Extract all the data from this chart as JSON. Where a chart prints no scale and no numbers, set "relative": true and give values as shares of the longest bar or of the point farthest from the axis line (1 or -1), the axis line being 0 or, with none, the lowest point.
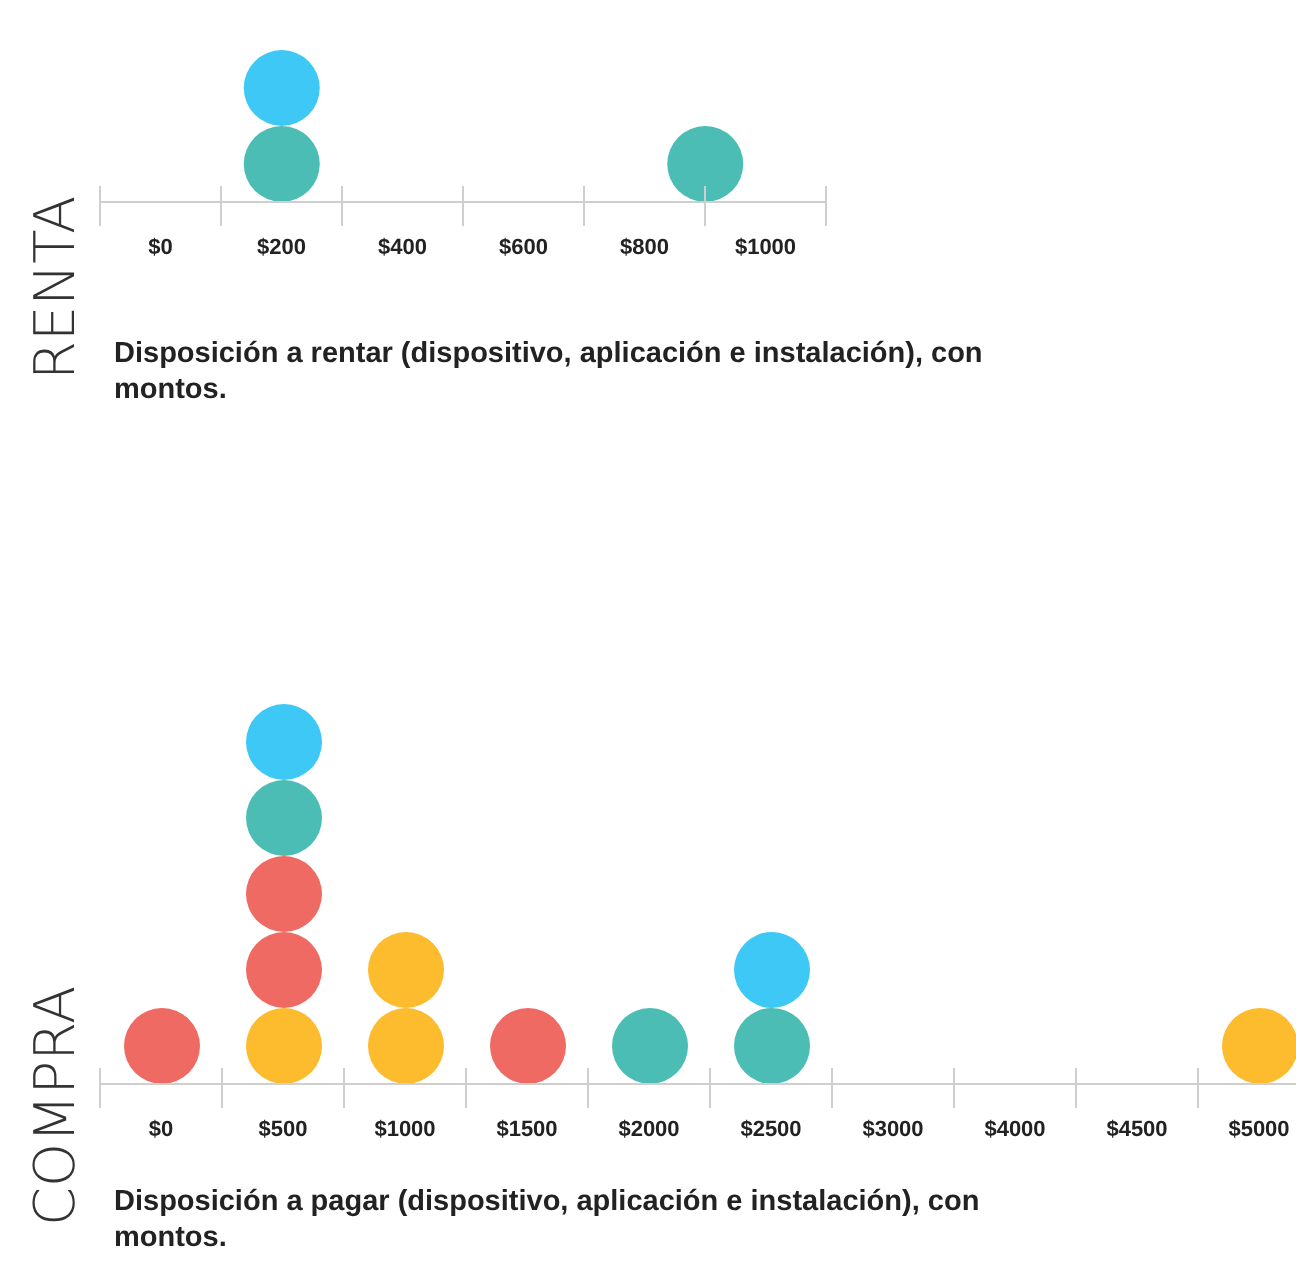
{
  "chart_data": [
    {
      "type": "bar",
      "stacked": true,
      "relative": true,
      "ylabel": "RENTA",
      "title": "Disposición a rentar (dispositivo, aplicación e instalación), con montos.",
      "x": [
        200,
        900
      ],
      "xlim": [
        -100,
        1100
      ],
      "xticks": [
        {
          "value": 0,
          "label": "$0"
        },
        {
          "value": 200,
          "label": "$200"
        },
        {
          "value": 400,
          "label": "$400"
        },
        {
          "value": 600,
          "label": "$600"
        },
        {
          "value": 800,
          "label": "$800"
        },
        {
          "value": 1000,
          "label": "$1000"
        }
      ],
      "series": [
        {
          "color": "#4bbdb5",
          "values": [
            0.5,
            0.5
          ]
        },
        {
          "color": "#3ec8f5",
          "values": [
            0.5,
            null
          ]
        }
      ]
    },
    {
      "type": "bar",
      "stacked": true,
      "relative": true,
      "ylabel": "COMPRA",
      "title": "Disposición a pagar (dispositivo, aplicación e instalación), con montos.",
      "categories": [
        "$0",
        "$500",
        "$1000",
        "$1500",
        "$2000",
        "$2500",
        "$3000",
        "$4000",
        "$4500",
        "$5000"
      ],
      "series": [
        {
          "color": "#fdbb2e",
          "values": [
            null,
            0.2,
            0.2,
            null,
            null,
            null,
            null,
            null,
            null,
            0.2
          ]
        },
        {
          "color": "#fdbb2e",
          "values": [
            null,
            null,
            0.2,
            null,
            null,
            null,
            null,
            null,
            null,
            null
          ]
        },
        {
          "color": "#ee6a62",
          "values": [
            0.2,
            0.2,
            null,
            0.2,
            null,
            null,
            null,
            null,
            null,
            null
          ]
        },
        {
          "color": "#ee6a62",
          "values": [
            null,
            0.2,
            null,
            null,
            null,
            null,
            null,
            null,
            null,
            null
          ]
        },
        {
          "color": "#4bbdb5",
          "values": [
            null,
            0.2,
            null,
            null,
            0.2,
            0.2,
            null,
            null,
            null,
            null
          ]
        },
        {
          "color": "#3ec8f5",
          "values": [
            null,
            0.2,
            null,
            null,
            null,
            0.2,
            null,
            null,
            null,
            null
          ]
        }
      ]
    }
  ]
}
